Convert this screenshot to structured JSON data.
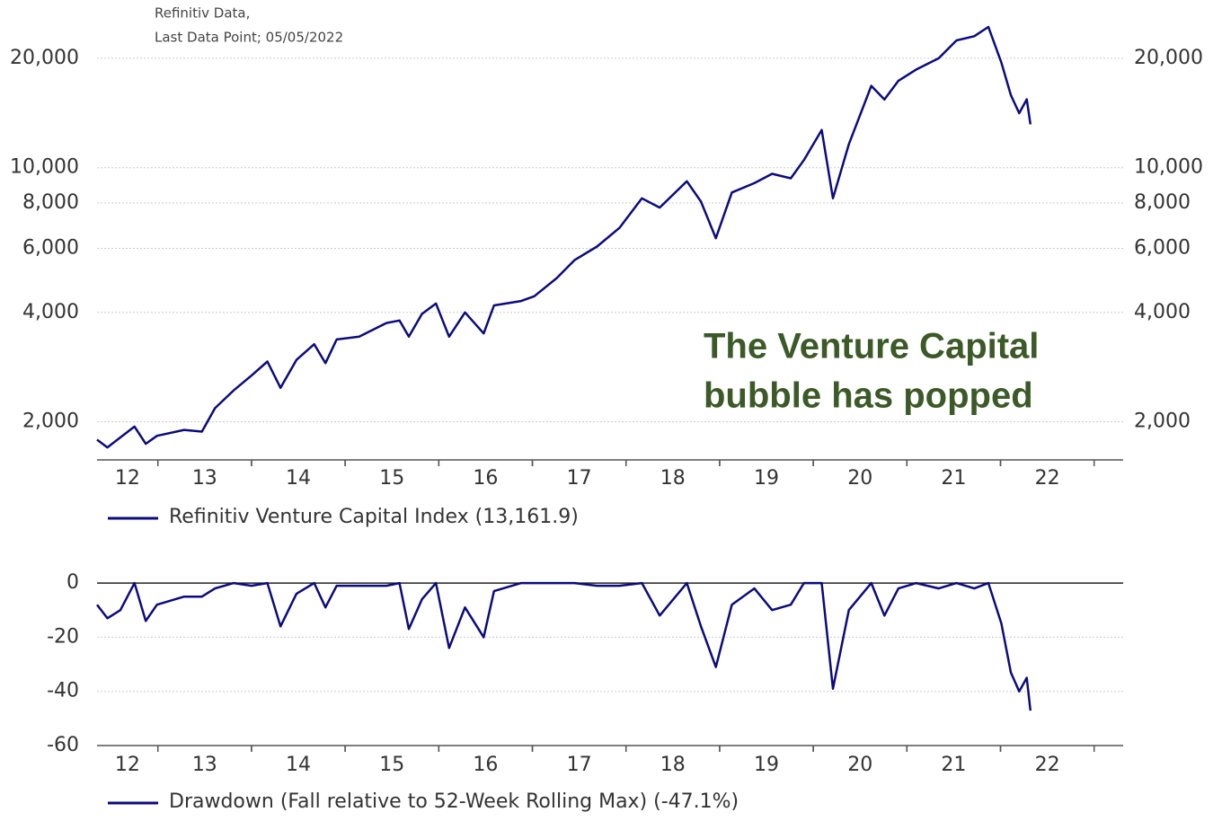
{
  "chart_data": [
    {
      "type": "line",
      "log_scale": true,
      "grid": true,
      "right_axis": true,
      "source": [
        "Refinitiv Data,",
        "Last Data Point; 05/05/2022"
      ],
      "annotation": [
        "The Venture Capital",
        "bubble has popped"
      ],
      "xlim": [
        12.35,
        23.31
      ],
      "xticks": [
        12,
        13,
        14,
        15,
        16,
        17,
        18,
        19,
        20,
        21,
        22
      ],
      "ylim": [
        1600,
        26000
      ],
      "yticks": [
        {
          "value": 2000,
          "label": "2,000"
        },
        {
          "value": 4000,
          "label": "4,000"
        },
        {
          "value": 6000,
          "label": "6,000"
        },
        {
          "value": 8000,
          "label": "8,000"
        },
        {
          "value": 10000,
          "label": "10,000"
        },
        {
          "value": 20000,
          "label": "20,000"
        }
      ],
      "x": [
        12.35,
        12.46,
        12.75,
        12.87,
        12.99,
        13.28,
        13.47,
        13.61,
        13.81,
        14.0,
        14.17,
        14.31,
        14.48,
        14.67,
        14.79,
        14.91,
        15.15,
        15.44,
        15.58,
        15.68,
        15.82,
        15.97,
        16.11,
        16.28,
        16.48,
        16.59,
        16.88,
        17.02,
        17.26,
        17.45,
        17.69,
        17.93,
        18.17,
        18.36,
        18.65,
        18.8,
        18.96,
        19.13,
        19.37,
        19.56,
        19.76,
        19.9,
        20.09,
        20.21,
        20.38,
        20.62,
        20.76,
        20.91,
        21.1,
        21.34,
        21.53,
        21.72,
        21.87,
        22.01,
        22.11,
        22.2,
        22.28,
        22.32
      ],
      "series": [
        {
          "name": "Refinitiv Venture Capital Index (13,161.9)",
          "color": "#0b0b7e",
          "values": [
            1786,
            1700,
            1940,
            1740,
            1830,
            1900,
            1880,
            2180,
            2440,
            2680,
            2930,
            2480,
            2960,
            3270,
            2900,
            3370,
            3430,
            3740,
            3800,
            3430,
            3960,
            4230,
            3430,
            4000,
            3500,
            4180,
            4300,
            4430,
            4970,
            5570,
            6070,
            6830,
            8240,
            7770,
            9180,
            8070,
            6400,
            8550,
            9070,
            9620,
            9350,
            10500,
            12700,
            8240,
            11600,
            16800,
            15400,
            17350,
            18630,
            20000,
            22400,
            23000,
            24400,
            19450,
            15840,
            14130,
            15420,
            13162
          ]
        }
      ]
    },
    {
      "type": "line",
      "log_scale": false,
      "grid": true,
      "right_axis": false,
      "xlim": [
        12.35,
        23.31
      ],
      "xticks": [
        12,
        13,
        14,
        15,
        16,
        17,
        18,
        19,
        20,
        21,
        22
      ],
      "ylim": [
        -60,
        5
      ],
      "yticks": [
        -60,
        -40,
        -20,
        0
      ],
      "x": [
        12.35,
        12.46,
        12.6,
        12.75,
        12.87,
        12.99,
        13.28,
        13.47,
        13.61,
        13.81,
        14.0,
        14.17,
        14.31,
        14.48,
        14.67,
        14.79,
        14.91,
        15.15,
        15.44,
        15.58,
        15.68,
        15.82,
        15.97,
        16.11,
        16.28,
        16.48,
        16.59,
        16.88,
        17.02,
        17.26,
        17.45,
        17.69,
        17.93,
        18.17,
        18.36,
        18.65,
        18.8,
        18.96,
        19.13,
        19.37,
        19.56,
        19.76,
        19.9,
        20.09,
        20.21,
        20.38,
        20.62,
        20.76,
        20.91,
        21.1,
        21.34,
        21.53,
        21.72,
        21.87,
        22.01,
        22.11,
        22.2,
        22.28,
        22.32
      ],
      "series": [
        {
          "name": "Drawdown (Fall relative to 52-Week Rolling Max) (-47.1%)",
          "color": "#0b0b7e",
          "values": [
            -8,
            -13,
            -10,
            0,
            -14,
            -8,
            -5,
            -5,
            -2,
            0,
            -1,
            0,
            -16,
            -4,
            0,
            -9,
            -1,
            -1,
            -1,
            0,
            -17,
            -6,
            0,
            -24,
            -9,
            -20,
            -3,
            0,
            0,
            0,
            0,
            -1,
            -1,
            0,
            -12,
            0,
            -16,
            -31,
            -8,
            -2,
            -10,
            -8,
            0,
            0,
            -39,
            -10,
            0,
            -12,
            -2,
            0,
            -2,
            0,
            -2,
            0,
            -15,
            -33,
            -40,
            -35,
            -47.1
          ]
        }
      ]
    }
  ]
}
